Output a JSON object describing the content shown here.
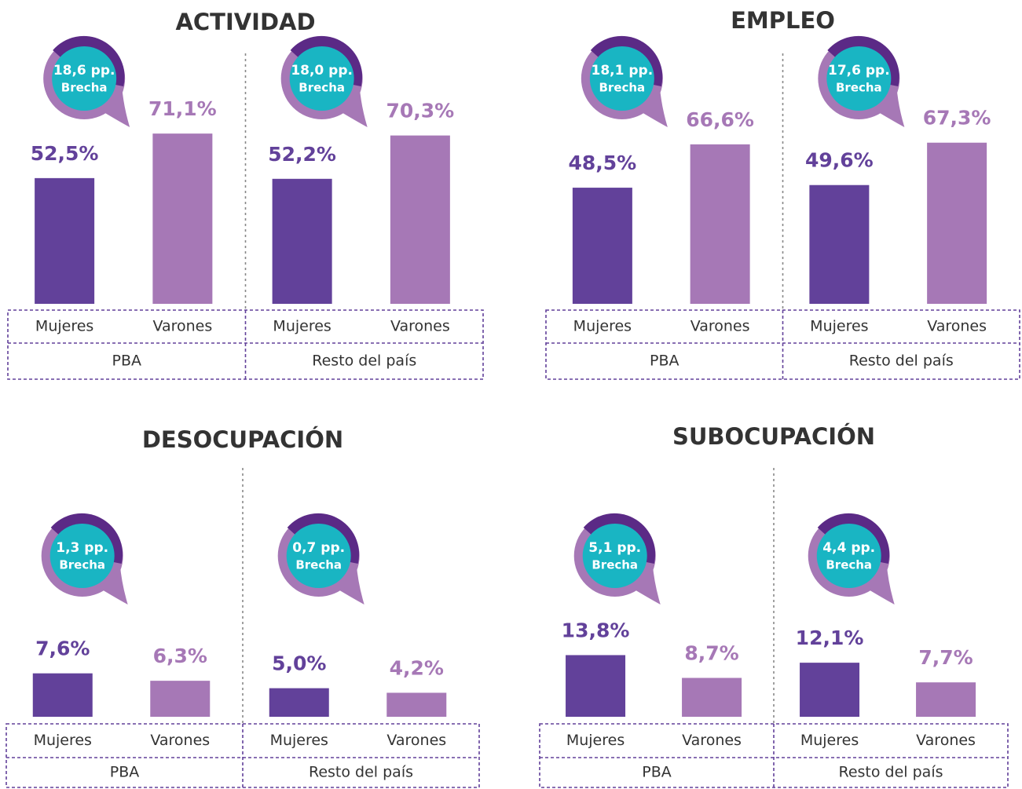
{
  "chart_data": [
    {
      "type": "bar",
      "title": "ACTIVIDAD",
      "ylim": [
        0,
        100
      ],
      "colors": [
        "#62419a",
        "#a678b6"
      ],
      "groups": [
        {
          "name": "PBA",
          "categories": [
            "Mujeres",
            "Varones"
          ],
          "values": [
            52.5,
            71.1
          ],
          "value_labels": [
            "52,5%",
            "71,1%"
          ],
          "gap_label": "18,6 pp.",
          "gap_caption": "Brecha"
        },
        {
          "name": "Resto del país",
          "categories": [
            "Mujeres",
            "Varones"
          ],
          "values": [
            52.2,
            70.3
          ],
          "value_labels": [
            "52,2%",
            "70,3%"
          ],
          "gap_label": "18,0 pp.",
          "gap_caption": "Brecha"
        }
      ]
    },
    {
      "type": "bar",
      "title": "EMPLEO",
      "ylim": [
        0,
        100
      ],
      "colors": [
        "#62419a",
        "#a678b6"
      ],
      "groups": [
        {
          "name": "PBA",
          "categories": [
            "Mujeres",
            "Varones"
          ],
          "values": [
            48.5,
            66.6
          ],
          "value_labels": [
            "48,5%",
            "66,6%"
          ],
          "gap_label": "18,1 pp.",
          "gap_caption": "Brecha"
        },
        {
          "name": "Resto del país",
          "categories": [
            "Mujeres",
            "Varones"
          ],
          "values": [
            49.6,
            67.3
          ],
          "value_labels": [
            "49,6%",
            "67,3%"
          ],
          "gap_label": "17,6 pp.",
          "gap_caption": "Brecha"
        }
      ]
    },
    {
      "type": "bar",
      "title": "DESOCUPACIÓN",
      "ylim": [
        0,
        43
      ],
      "colors": [
        "#62419a",
        "#a678b6"
      ],
      "groups": [
        {
          "name": "PBA",
          "categories": [
            "Mujeres",
            "Varones"
          ],
          "values": [
            7.6,
            6.3
          ],
          "value_labels": [
            "7,6%",
            "6,3%"
          ],
          "gap_label": "1,3 pp.",
          "gap_caption": "Brecha"
        },
        {
          "name": "Resto del país",
          "categories": [
            "Mujeres",
            "Varones"
          ],
          "values": [
            5.0,
            4.2
          ],
          "value_labels": [
            "5,0%",
            "4,2%"
          ],
          "gap_label": "0,7 pp.",
          "gap_caption": "Brecha"
        }
      ]
    },
    {
      "type": "bar",
      "title": "SUBOCUPACIÓN",
      "ylim": [
        0,
        55
      ],
      "colors": [
        "#62419a",
        "#a678b6"
      ],
      "groups": [
        {
          "name": "PBA",
          "categories": [
            "Mujeres",
            "Varones"
          ],
          "values": [
            13.8,
            8.7
          ],
          "value_labels": [
            "13,8%",
            "8,7%"
          ],
          "gap_label": "5,1 pp.",
          "gap_caption": "Brecha"
        },
        {
          "name": "Resto del país",
          "categories": [
            "Mujeres",
            "Varones"
          ],
          "values": [
            12.1,
            7.7
          ],
          "value_labels": [
            "12,1%",
            "7,7%"
          ],
          "gap_label": "4,4 pp.",
          "gap_caption": "Brecha"
        }
      ]
    }
  ]
}
